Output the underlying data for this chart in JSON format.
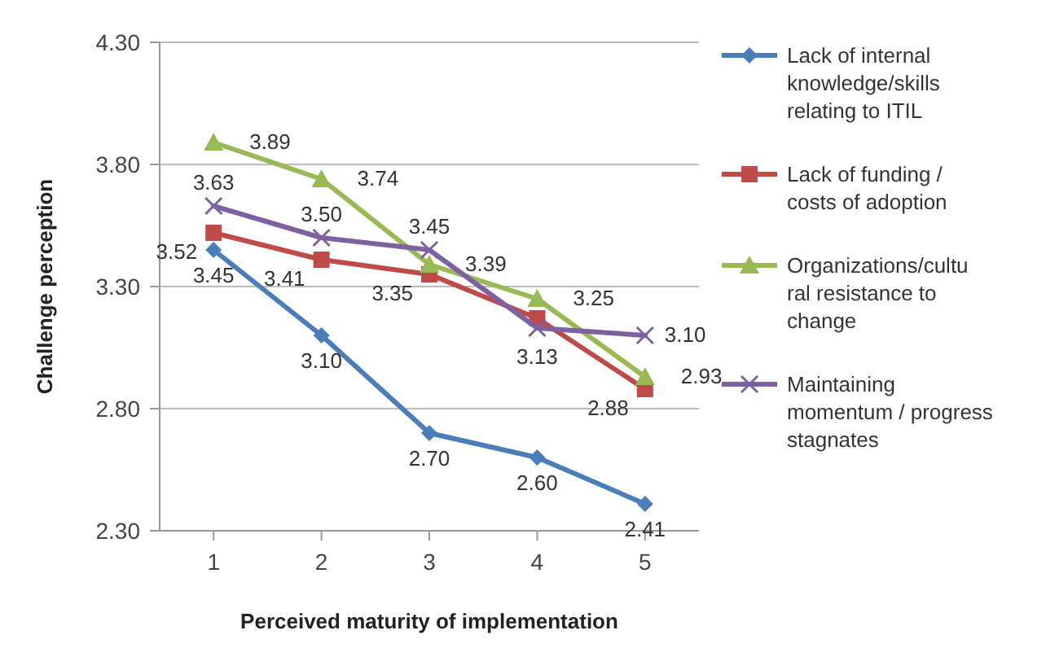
{
  "chart_data": {
    "type": "line",
    "xlabel": "Perceived maturity of implementation",
    "ylabel": "Challenge perception",
    "x": [
      1,
      2,
      3,
      4,
      5
    ],
    "xlim": [
      0.5,
      5.5
    ],
    "xticks": [
      1,
      2,
      3,
      4,
      5
    ],
    "ylim": [
      2.3,
      4.3
    ],
    "yticks": [
      {
        "value": 2.3,
        "label": "2.30"
      },
      {
        "value": 2.8,
        "label": "2.80"
      },
      {
        "value": 3.3,
        "label": "3.30"
      },
      {
        "value": 3.8,
        "label": "3.80"
      },
      {
        "value": 4.3,
        "label": "4.30"
      }
    ],
    "grid": "y",
    "legend": "right",
    "series": [
      {
        "name": "Lack of internal knowledge/skills relating to ITIL",
        "color": "#4a7ebb",
        "marker": "diamond",
        "values": [
          3.45,
          3.1,
          2.7,
          2.6,
          2.41
        ],
        "value_labels": [
          "3.45",
          "3.10",
          "2.70",
          "2.60",
          "2.41"
        ]
      },
      {
        "name": "Lack of funding / costs of adoption",
        "color": "#be4b48",
        "marker": "square",
        "values": [
          3.52,
          3.41,
          3.35,
          3.17,
          2.88
        ],
        "value_labels": [
          "3.52",
          "3.41",
          "3.35",
          null,
          "2.88"
        ]
      },
      {
        "name": "Organizations/cultural resistance to change",
        "color": "#98b954",
        "marker": "triangle",
        "values": [
          3.89,
          3.74,
          3.39,
          3.25,
          2.93
        ],
        "value_labels": [
          "3.89",
          "3.74",
          "3.39",
          "3.25",
          "2.93"
        ]
      },
      {
        "name": "Maintaining momentum / progress stagnates",
        "color": "#7d60a0",
        "marker": "cross",
        "values": [
          3.63,
          3.5,
          3.45,
          3.13,
          3.1
        ],
        "value_labels": [
          "3.63",
          "3.50",
          "3.45",
          "3.13",
          "3.10"
        ]
      }
    ]
  }
}
